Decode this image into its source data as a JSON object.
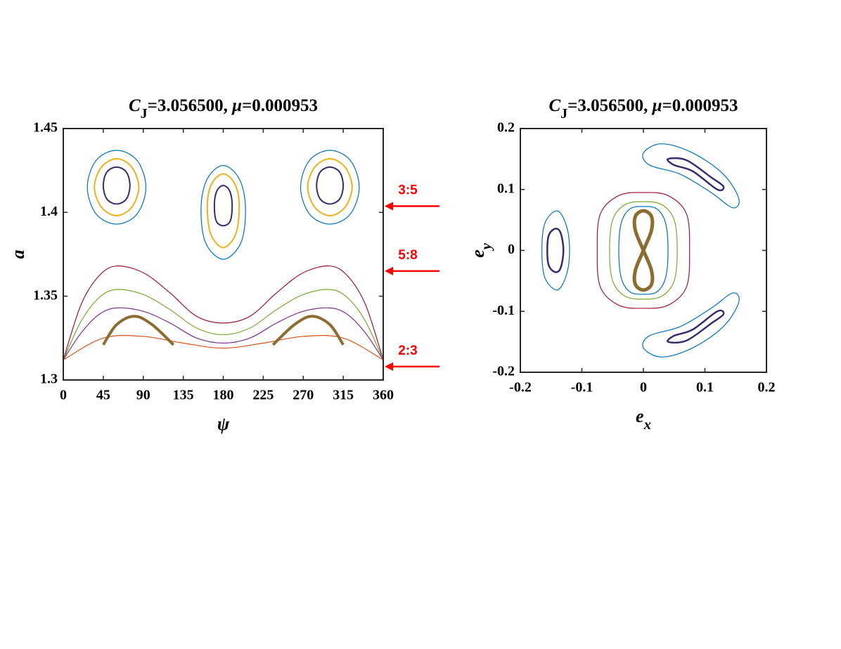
{
  "chart_data": [
    {
      "type": "line",
      "title": [
        "C",
        "J",
        "=3.056500,  ",
        "μ",
        "=0.000953"
      ],
      "xlabel": [
        "ψ"
      ],
      "ylabel": [
        "a"
      ],
      "xlim": [
        0,
        360
      ],
      "ylim": [
        1.3,
        1.45
      ],
      "xticks": [
        0,
        45,
        90,
        135,
        180,
        225,
        270,
        315,
        360
      ],
      "yticks": [
        1.3,
        1.35,
        1.4,
        1.45
      ],
      "series": [
        {
          "color": "#0072bd",
          "closed": true,
          "linewidth": 1.2,
          "x": [
            93,
            83,
            60,
            37,
            27,
            37,
            60,
            83
          ],
          "values": [
            1.415,
            1.431,
            1.437,
            1.431,
            1.415,
            1.399,
            1.393,
            1.399
          ]
        },
        {
          "color": "#edb120",
          "closed": true,
          "linewidth": 2,
          "x": [
            85,
            77,
            60,
            43,
            35,
            43,
            60,
            77
          ],
          "values": [
            1.415,
            1.427,
            1.432,
            1.427,
            1.415,
            1.403,
            1.398,
            1.403
          ]
        },
        {
          "color": "#3b2a6e",
          "closed": true,
          "linewidth": 2,
          "x": [
            75,
            71,
            60,
            49,
            45,
            49,
            60,
            71
          ],
          "values": [
            1.416,
            1.424,
            1.427,
            1.424,
            1.416,
            1.408,
            1.405,
            1.408
          ]
        },
        {
          "color": "#0072bd",
          "closed": true,
          "linewidth": 1.2,
          "x": [
            333,
            323,
            300,
            277,
            267,
            277,
            300,
            323
          ],
          "values": [
            1.415,
            1.431,
            1.437,
            1.431,
            1.415,
            1.399,
            1.393,
            1.399
          ]
        },
        {
          "color": "#edb120",
          "closed": true,
          "linewidth": 2,
          "x": [
            325,
            317,
            300,
            283,
            275,
            283,
            300,
            317
          ],
          "values": [
            1.415,
            1.427,
            1.432,
            1.427,
            1.415,
            1.403,
            1.398,
            1.403
          ]
        },
        {
          "color": "#3b2a6e",
          "closed": true,
          "linewidth": 2,
          "x": [
            315,
            311,
            300,
            289,
            285,
            289,
            300,
            311
          ],
          "values": [
            1.416,
            1.424,
            1.427,
            1.424,
            1.416,
            1.408,
            1.405,
            1.408
          ]
        },
        {
          "color": "#0072bd",
          "closed": true,
          "linewidth": 1.2,
          "x": [
            205,
            198,
            180,
            162,
            155,
            160,
            180,
            200
          ],
          "values": [
            1.403,
            1.42,
            1.428,
            1.42,
            1.403,
            1.382,
            1.372,
            1.382
          ]
        },
        {
          "color": "#edb120",
          "closed": true,
          "linewidth": 2,
          "x": [
            198,
            193,
            180,
            167,
            162,
            166,
            180,
            194
          ],
          "values": [
            1.404,
            1.417,
            1.423,
            1.417,
            1.404,
            1.387,
            1.379,
            1.387
          ]
        },
        {
          "color": "#3b2a6e",
          "closed": true,
          "linewidth": 2,
          "x": [
            190,
            187,
            180,
            173,
            170,
            172,
            180,
            188
          ],
          "values": [
            1.405,
            1.413,
            1.416,
            1.413,
            1.405,
            1.395,
            1.392,
            1.395
          ]
        },
        {
          "color": "#a2142f",
          "closed": false,
          "linewidth": 1.2,
          "x": [
            0,
            20,
            40,
            60,
            90,
            120,
            150,
            180,
            210,
            240,
            270,
            300,
            320,
            340,
            360
          ],
          "values": [
            1.312,
            1.345,
            1.362,
            1.368,
            1.364,
            1.352,
            1.338,
            1.334,
            1.338,
            1.352,
            1.364,
            1.368,
            1.362,
            1.345,
            1.312
          ]
        },
        {
          "color": "#77ac30",
          "closed": false,
          "linewidth": 1.2,
          "x": [
            0,
            20,
            40,
            60,
            90,
            120,
            150,
            180,
            210,
            240,
            270,
            300,
            320,
            340,
            360
          ],
          "values": [
            1.312,
            1.335,
            1.349,
            1.354,
            1.351,
            1.342,
            1.331,
            1.327,
            1.331,
            1.342,
            1.351,
            1.354,
            1.349,
            1.335,
            1.312
          ]
        },
        {
          "color": "#7e2f8e",
          "closed": false,
          "linewidth": 1.2,
          "x": [
            0,
            20,
            40,
            60,
            90,
            120,
            150,
            180,
            210,
            240,
            270,
            300,
            320,
            340,
            360
          ],
          "values": [
            1.312,
            1.328,
            1.339,
            1.343,
            1.341,
            1.334,
            1.325,
            1.322,
            1.325,
            1.334,
            1.341,
            1.343,
            1.339,
            1.328,
            1.312
          ]
        },
        {
          "color": "#d95319",
          "closed": false,
          "linewidth": 1.2,
          "x": [
            0,
            45,
            90,
            135,
            180,
            225,
            270,
            315,
            360
          ],
          "values": [
            1.312,
            1.325,
            1.326,
            1.322,
            1.319,
            1.322,
            1.326,
            1.325,
            1.312
          ]
        },
        {
          "color": "#8c6d31",
          "closed": false,
          "linewidth": 4,
          "x": [
            45,
            60,
            80,
            100,
            124
          ],
          "values": [
            1.321,
            1.333,
            1.338,
            1.333,
            1.321
          ]
        },
        {
          "color": "#8c6d31",
          "closed": false,
          "linewidth": 4,
          "x": [
            236,
            260,
            280,
            300,
            315
          ],
          "values": [
            1.321,
            1.333,
            1.338,
            1.333,
            1.321
          ]
        }
      ],
      "annotations": [
        {
          "text": "3:5",
          "value": 1.4037
        },
        {
          "text": "5:8",
          "value": 1.365
        },
        {
          "text": "2:3",
          "value": 1.308
        }
      ],
      "annotation_color": "#ff0000"
    },
    {
      "type": "line",
      "title": [
        "C",
        "J",
        "=3.056500, ",
        "μ",
        "=0.000953"
      ],
      "xlabel": [
        "e",
        "x"
      ],
      "ylabel": [
        "e",
        "y"
      ],
      "xlim": [
        -0.2,
        0.2
      ],
      "ylim": [
        -0.2,
        0.2
      ],
      "xticks": [
        -0.2,
        -0.1,
        0,
        0.1,
        0.2
      ],
      "yticks": [
        -0.2,
        -0.1,
        0,
        0.1,
        0.2
      ],
      "series": [
        {
          "color": "#a2142f",
          "closed": true,
          "linewidth": 1.2,
          "x": [
            0.075,
            0.07,
            0.04,
            0,
            -0.04,
            -0.07,
            -0.075,
            -0.07,
            -0.04,
            0,
            0.04,
            0.07
          ],
          "values": [
            0,
            0.06,
            0.09,
            0.095,
            0.09,
            0.06,
            0,
            -0.06,
            -0.09,
            -0.095,
            -0.09,
            -0.06
          ]
        },
        {
          "color": "#77ac30",
          "closed": true,
          "linewidth": 1.2,
          "x": [
            0.055,
            0.05,
            0.03,
            0,
            -0.03,
            -0.05,
            -0.055,
            -0.05,
            -0.03,
            0,
            0.03,
            0.05
          ],
          "values": [
            0,
            0.05,
            0.075,
            0.08,
            0.075,
            0.05,
            0,
            -0.05,
            -0.075,
            -0.08,
            -0.075,
            -0.05
          ]
        },
        {
          "color": "#0072bd",
          "closed": true,
          "linewidth": 1.2,
          "x": [
            0.04,
            0.036,
            0.022,
            0,
            -0.022,
            -0.036,
            -0.04,
            -0.036,
            -0.022,
            0,
            0.022,
            0.036
          ],
          "values": [
            0,
            0.045,
            0.068,
            0.072,
            0.068,
            0.045,
            0,
            -0.045,
            -0.068,
            -0.072,
            -0.068,
            -0.045
          ]
        },
        {
          "color": "#8c6d31",
          "closed": true,
          "linewidth": 5,
          "x": [
            0,
            0.013,
            0.013,
            0,
            -0.013,
            -0.013,
            0,
            0.013,
            0.013,
            0,
            -0.013,
            -0.013
          ],
          "values": [
            0,
            0.0325,
            0.056,
            0.065,
            0.056,
            0.0325,
            0,
            -0.0325,
            -0.056,
            -0.065,
            -0.056,
            -0.0325
          ]
        },
        {
          "color": "#0072bd",
          "closed": true,
          "linewidth": 1.2,
          "x": [
            -0.12,
            -0.125,
            -0.14,
            -0.16,
            -0.165,
            -0.16,
            -0.14,
            -0.125
          ],
          "values": [
            0,
            0.04,
            0.065,
            0.045,
            0,
            -0.045,
            -0.065,
            -0.04
          ]
        },
        {
          "color": "#3b2a6e",
          "closed": true,
          "linewidth": 2.5,
          "x": [
            -0.13,
            -0.135,
            -0.145,
            -0.155,
            -0.155,
            -0.145,
            -0.135
          ],
          "values": [
            0,
            0.03,
            0.035,
            0.02,
            -0.02,
            -0.035,
            -0.03
          ]
        },
        {
          "color": "#0072bd",
          "closed": true,
          "linewidth": 1.2,
          "x": [
            0,
            0.03,
            0.08,
            0.13,
            0.155,
            0.145,
            0.11,
            0.06,
            0.01
          ],
          "values": [
            0.16,
            0.175,
            0.16,
            0.125,
            0.085,
            0.07,
            0.095,
            0.125,
            0.14
          ]
        },
        {
          "color": "#3b2a6e",
          "closed": true,
          "linewidth": 2.5,
          "x": [
            0.04,
            0.07,
            0.11,
            0.13,
            0.12,
            0.08,
            0.05
          ],
          "values": [
            0.15,
            0.148,
            0.12,
            0.105,
            0.1,
            0.13,
            0.14
          ]
        },
        {
          "color": "#0072bd",
          "closed": true,
          "linewidth": 1.2,
          "x": [
            0,
            0.03,
            0.08,
            0.13,
            0.155,
            0.145,
            0.11,
            0.06,
            0.01
          ],
          "values": [
            -0.16,
            -0.175,
            -0.16,
            -0.125,
            -0.085,
            -0.07,
            -0.095,
            -0.125,
            -0.14
          ]
        },
        {
          "color": "#3b2a6e",
          "closed": true,
          "linewidth": 2.5,
          "x": [
            0.04,
            0.07,
            0.11,
            0.13,
            0.12,
            0.08,
            0.05
          ],
          "values": [
            -0.15,
            -0.148,
            -0.12,
            -0.105,
            -0.1,
            -0.13,
            -0.14
          ]
        }
      ]
    }
  ]
}
